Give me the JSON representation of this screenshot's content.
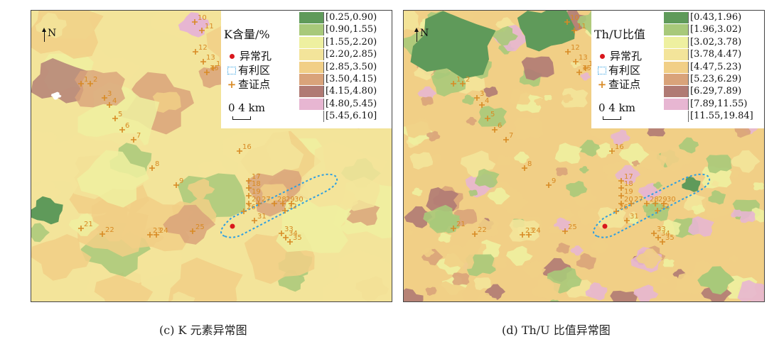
{
  "maps": [
    {
      "id": "c",
      "legend_title": "K含量/%",
      "classes": [
        {
          "label": "[0.25,0.90)",
          "color": "#5f9a5a"
        },
        {
          "label": "[0.90,1.55)",
          "color": "#a8c97a"
        },
        {
          "label": "[1.55,2.20)",
          "color": "#eef0a0"
        },
        {
          "label": "[2.20,2.85)",
          "color": "#f3e49a"
        },
        {
          "label": "[2.85,3.50)",
          "color": "#f1cf86"
        },
        {
          "label": "[3.50,4.15)",
          "color": "#d9a37a"
        },
        {
          "label": "[4.15,4.80)",
          "color": "#b07a74"
        },
        {
          "label": "[4.80,5.45)",
          "color": "#e7b6d2"
        },
        {
          "label": "[5.45,6.10]",
          "color": "#ffffff"
        }
      ],
      "caption": "(c) K 元素异常图"
    },
    {
      "id": "d",
      "legend_title": "Th/U比值",
      "classes": [
        {
          "label": "[0.43,1.96)",
          "color": "#5f9a5a"
        },
        {
          "label": "[1.96,3.02)",
          "color": "#a8c97a"
        },
        {
          "label": "[3.02,3.78)",
          "color": "#eef0a0"
        },
        {
          "label": "[3.78,4.47)",
          "color": "#f3e49a"
        },
        {
          "label": "[4.47,5.23)",
          "color": "#f1cf86"
        },
        {
          "label": "[5.23,6.29)",
          "color": "#d9a37a"
        },
        {
          "label": "[6.29,7.89)",
          "color": "#b07a74"
        },
        {
          "label": "[7.89,11.55)",
          "color": "#e7b6d2"
        },
        {
          "label": "[11.55,19.84]",
          "color": "#ffffff"
        }
      ],
      "caption": "(d) Th/U 比值异常图"
    }
  ],
  "legend_items": {
    "anomaly_hole": "异常孔",
    "favorable_area": "有利区",
    "check_point": "查证点"
  },
  "scale_label": "0   4 km",
  "north_label": "N",
  "check_point_ids": [
    "1",
    "2",
    "3",
    "4",
    "5",
    "6",
    "7",
    "8",
    "9",
    "10",
    "11",
    "12",
    "13",
    "14",
    "15",
    "16",
    "17",
    "18",
    "19",
    "20",
    "21",
    "22",
    "23",
    "24",
    "25",
    "26",
    "27",
    "28",
    "29",
    "30",
    "31",
    "32",
    "33",
    "34",
    "35"
  ],
  "colors": {
    "check_point": "#d88a24",
    "anomaly_hole": "#d9161c",
    "favorable_area": "#2f9fe0"
  }
}
